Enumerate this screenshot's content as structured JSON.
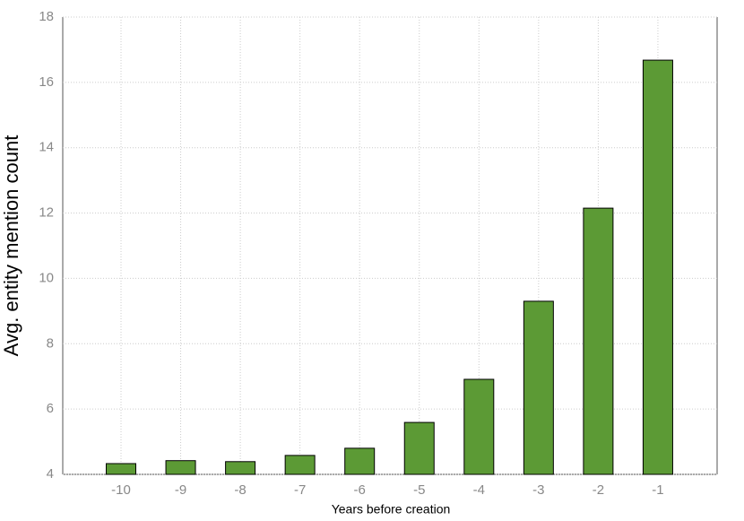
{
  "chart_data": {
    "type": "bar",
    "xlabel": "Years before creation",
    "ylabel": "Avg. entity mention count",
    "categories": [
      "-10",
      "-9",
      "-8",
      "-7",
      "-6",
      "-5",
      "-4",
      "-3",
      "-2",
      "-1"
    ],
    "values": [
      4.33,
      4.42,
      4.39,
      4.58,
      4.8,
      5.59,
      6.91,
      9.3,
      12.15,
      16.68
    ],
    "color": "#5c9a35",
    "ylim": [
      4,
      18
    ],
    "yticks": [
      4,
      6,
      8,
      10,
      12,
      14,
      16,
      18
    ],
    "grid": true
  }
}
